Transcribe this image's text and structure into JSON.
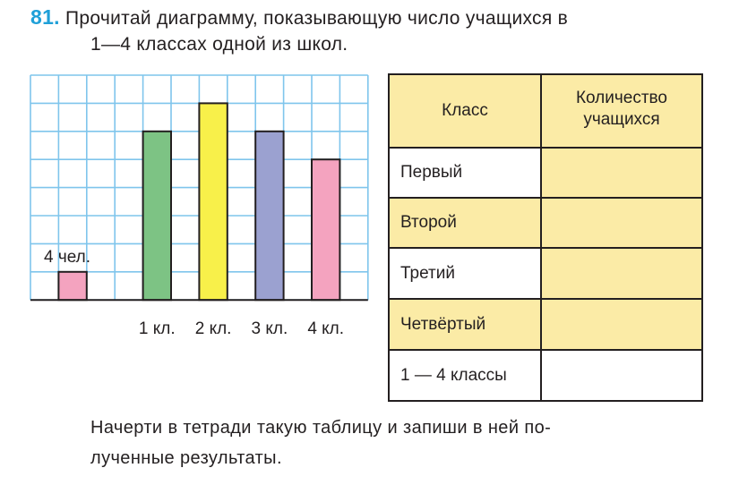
{
  "task": {
    "number": "81.",
    "line1": "Прочитай диаграмму, показывающую число учащихся в",
    "line2": "1—4 классах одной из школ."
  },
  "chart_data": {
    "type": "bar",
    "categories": [
      "",
      "1 кл.",
      "2 кл.",
      "3 кл.",
      "4 кл."
    ],
    "values": [
      1,
      6,
      7,
      6,
      5
    ],
    "unit_label": "4 чел.",
    "unit_value": 4,
    "colors": [
      "#f4a3bf",
      "#7dc384",
      "#f8f04a",
      "#9ba1d0",
      "#f4a3bf"
    ],
    "grid": true,
    "grid_color": "#7fc5ec",
    "ylim": [
      0,
      8
    ]
  },
  "table": {
    "header_col1": "Класс",
    "header_col2_line1": "Количество",
    "header_col2_line2": "учащихся",
    "rows": [
      {
        "label": "Первый",
        "value": ""
      },
      {
        "label": "Второй",
        "value": ""
      },
      {
        "label": "Третий",
        "value": ""
      },
      {
        "label": "Четвёртый",
        "value": ""
      },
      {
        "label": "1 — 4 классы",
        "value": ""
      }
    ]
  },
  "note": {
    "line1": "Начерти в тетради такую таблицу и запиши в ней по-",
    "line2": "лученные результаты."
  }
}
